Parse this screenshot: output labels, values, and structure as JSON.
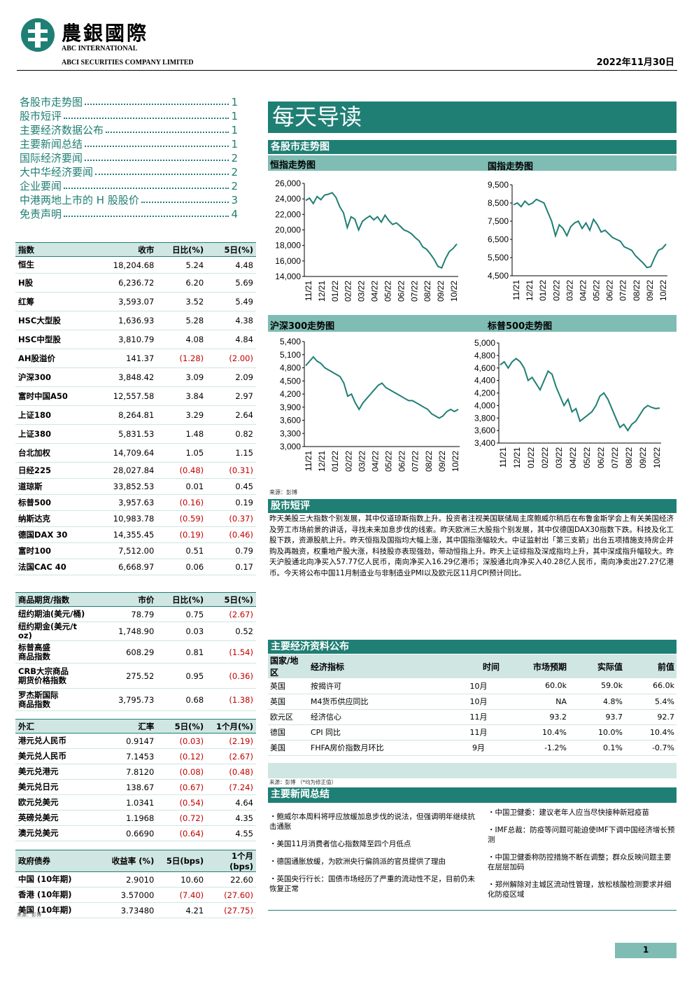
{
  "header": {
    "logo_cn": "農銀國際",
    "logo_en1": "ABC INTERNATIONAL",
    "logo_en2": "ABCI SECURITIES COMPANY LIMITED",
    "date": "2022年11月30日"
  },
  "toc": [
    {
      "label": "各股市走势图",
      "page": "1"
    },
    {
      "label": "股市短评",
      "page": "1"
    },
    {
      "label": "主要经济数据公布",
      "page": "1"
    },
    {
      "label": "主要新闻总结",
      "page": "1"
    },
    {
      "label": "国际经济要闻",
      "page": "2"
    },
    {
      "label": "大中华经济要闻",
      "page": "2"
    },
    {
      "label": "企业要闻",
      "page": "2"
    },
    {
      "label": "中港两地上市的 H 股股价",
      "page": "3"
    },
    {
      "label": "免责声明",
      "page": "4"
    }
  ],
  "index_table": {
    "headers": [
      "指数",
      "收市",
      "日比(%)",
      "5日(%)"
    ],
    "rows": [
      [
        "恒生",
        "18,204.68",
        "5.24",
        "4.48"
      ],
      [
        "H股",
        "6,236.72",
        "6.20",
        "5.69"
      ],
      [
        "红筹",
        "3,593.07",
        "3.52",
        "5.49"
      ],
      [
        "HSC大型股",
        "1,636.93",
        "5.28",
        "4.38"
      ],
      [
        "HSC中型股",
        "3,810.79",
        "4.08",
        "4.84"
      ],
      [
        "AH股溢价",
        "141.37",
        "(1.28)",
        "(2.00)"
      ],
      [
        "沪深300",
        "3,848.42",
        "3.09",
        "2.09"
      ],
      [
        "富时中国A50",
        "12,557.58",
        "3.84",
        "2.97"
      ],
      [
        "上证180",
        "8,264.81",
        "3.29",
        "2.64"
      ],
      [
        "上证380",
        "5,831.53",
        "1.48",
        "0.82"
      ],
      [
        "台北加权",
        "14,709.64",
        "1.05",
        "1.15"
      ],
      [
        "日经225",
        "28,027.84",
        "(0.48)",
        "(0.31)"
      ],
      [
        "道琼斯",
        "33,852.53",
        "0.01",
        "0.45"
      ],
      [
        "标普500",
        "3,957.63",
        "(0.16)",
        "0.19"
      ],
      [
        "纳斯达克",
        "10,983.78",
        "(0.59)",
        "(0.37)"
      ],
      [
        "德国DAX 30",
        "14,355.45",
        "(0.19)",
        "(0.46)"
      ],
      [
        "富时100",
        "7,512.00",
        "0.51",
        "0.79"
      ],
      [
        "法国CAC 40",
        "6,668.97",
        "0.06",
        "0.17"
      ]
    ]
  },
  "commodity_table": {
    "headers": [
      "商品期货/指数",
      "市价",
      "日比(%)",
      "5日(%)"
    ],
    "rows": [
      [
        "纽约期油(美元/桶)",
        "78.79",
        "0.75",
        "(2.67)"
      ],
      [
        "纽约期金(美元/t oz)",
        "1,748.90",
        "0.03",
        "0.52"
      ],
      [
        "标普高盛\n商品指数",
        "608.29",
        "0.81",
        "(1.54)"
      ],
      [
        "CRB大宗商品\n期货价格指数",
        "275.52",
        "0.95",
        "(0.36)"
      ],
      [
        "罗杰斯国际\n商品指数",
        "3,795.73",
        "0.68",
        "(1.38)"
      ]
    ]
  },
  "fx_table": {
    "headers": [
      "外汇",
      "汇率",
      "5日(%)",
      "1个月(%)"
    ],
    "rows": [
      [
        "港元兑人民币",
        "0.9147",
        "(0.03)",
        "(2.19)"
      ],
      [
        "美元兑人民币",
        "7.1453",
        "(0.12)",
        "(2.67)"
      ],
      [
        "美元兑港元",
        "7.8120",
        "(0.08)",
        "(0.48)"
      ],
      [
        "美元兑日元",
        "138.67",
        "(0.67)",
        "(7.24)"
      ],
      [
        "欧元兑美元",
        "1.0341",
        "(0.54)",
        "4.64"
      ],
      [
        "英磅兑美元",
        "1.1968",
        "(0.72)",
        "4.35"
      ],
      [
        "澳元兑美元",
        "0.6690",
        "(0.64)",
        "4.55"
      ]
    ]
  },
  "bond_table": {
    "headers": [
      "政府债券",
      "收益率 (%)",
      "5日(bps)",
      "1个月(bps)"
    ],
    "rows": [
      [
        "中国 (10年期)",
        "2.9010",
        "10.60",
        "22.60"
      ],
      [
        "香港 (10年期)",
        "3.57000",
        "(7.40)",
        "(27.60)"
      ],
      [
        "美国 (10年期)",
        "3.73480",
        "4.21",
        "(27.75)"
      ]
    ]
  },
  "left_source": "来源：彭博",
  "title": "每天导读",
  "charts_section": "各股市走势图",
  "chart_source": "来源：彭博",
  "charts": [
    {
      "title": "恒指走势图",
      "type": "line",
      "ylim": [
        14000,
        26000
      ],
      "yticks": [
        "26,000",
        "24,000",
        "22,000",
        "20,000",
        "18,000",
        "16,000",
        "14,000"
      ],
      "xticks": [
        "11/21",
        "12/21",
        "01/22",
        "02/22",
        "03/22",
        "04/22",
        "05/22",
        "06/22",
        "07/22",
        "08/22",
        "09/22",
        "10/22"
      ],
      "values": [
        23800,
        24100,
        23400,
        24300,
        23900,
        24500,
        24600,
        24800,
        24200,
        23000,
        22200,
        20300,
        21700,
        21400,
        20000,
        21100,
        21500,
        21800,
        21300,
        21700,
        21000,
        21900,
        21200,
        20700,
        20900,
        20500,
        20000,
        19800,
        19500,
        19000,
        18600,
        17800,
        17500,
        16900,
        16200,
        15300,
        15100,
        16300,
        17200,
        17600,
        18200
      ]
    },
    {
      "title": "国指走势图",
      "type": "line",
      "ylim": [
        4500,
        9500
      ],
      "yticks": [
        "9,500",
        "8,500",
        "7,500",
        "6,500",
        "5,500",
        "4,500"
      ],
      "xticks": [
        "11/21",
        "12/21",
        "01/22",
        "02/22",
        "03/22",
        "04/22",
        "05/22",
        "06/22",
        "07/22",
        "08/22",
        "09/22",
        "10/22"
      ],
      "values": [
        8400,
        8500,
        8300,
        8600,
        8400,
        8500,
        8700,
        8600,
        8500,
        8000,
        7500,
        6700,
        7300,
        7100,
        6700,
        7200,
        7400,
        7500,
        7100,
        7400,
        7000,
        7600,
        7300,
        6900,
        7000,
        6800,
        6600,
        6500,
        6400,
        6100,
        6000,
        5900,
        5600,
        5400,
        5200,
        4950,
        5000,
        5500,
        5900,
        6000,
        6240
      ]
    },
    {
      "title": "沪深300走势图",
      "type": "line",
      "ylim": [
        3000,
        5400
      ],
      "yticks": [
        "5,400",
        "5,100",
        "4,800",
        "4,500",
        "4,200",
        "3,900",
        "3,600",
        "3,300",
        "3,000"
      ],
      "xticks": [
        "11/21",
        "12/21",
        "01/22",
        "02/22",
        "03/22",
        "04/22",
        "05/22",
        "06/22",
        "07/22",
        "08/22",
        "09/22",
        "10/22"
      ],
      "values": [
        4850,
        4950,
        5050,
        4950,
        4900,
        4800,
        4750,
        4700,
        4650,
        4600,
        4450,
        4150,
        4200,
        4000,
        3850,
        4000,
        4100,
        4200,
        4300,
        4400,
        4450,
        4350,
        4300,
        4250,
        4200,
        4150,
        4100,
        4050,
        4050,
        4000,
        3950,
        3900,
        3850,
        3750,
        3700,
        3650,
        3700,
        3800,
        3850,
        3800,
        3850
      ]
    },
    {
      "title": "标普500走势图",
      "type": "line",
      "ylim": [
        3400,
        5000
      ],
      "yticks": [
        "5,000",
        "4,800",
        "4,600",
        "4,400",
        "4,200",
        "4,000",
        "3,800",
        "3,600",
        "3,400"
      ],
      "xticks": [
        "11/21",
        "12/21",
        "01/22",
        "02/22",
        "03/22",
        "04/22",
        "05/22",
        "06/22",
        "07/22",
        "08/22",
        "09/22",
        "10/22"
      ],
      "values": [
        4650,
        4700,
        4600,
        4700,
        4750,
        4700,
        4600,
        4400,
        4450,
        4350,
        4250,
        4400,
        4550,
        4500,
        4300,
        4150,
        4000,
        4100,
        3900,
        3950,
        3750,
        3800,
        3850,
        3900,
        4000,
        4150,
        4200,
        4100,
        3950,
        3800,
        3650,
        3700,
        3600,
        3700,
        3750,
        3850,
        3950,
        4000,
        3970,
        3950,
        3960
      ]
    }
  ],
  "commentary": {
    "title": "股市短评",
    "text": "昨天美股三大指数个别发展，其中仅道琼斯指数上升。投资者注视美国联储局主席鲍威尔稍后在布鲁金斯学会上有关美国经济及劳工市场前景的讲话，寻找未来加息步伐的线索。昨天欧洲三大股指个别发展，其中仅德国DAX30指数下跌。科技及化工股下跌，资源股航上升。昨天恒指及国指均大幅上涨，其中国指涨幅较大。中证监射出「第三支箭」出台五项措施支持房企并购及再融资，权重地产股大涨，科技股亦表现强劲，带动恒指上升。昨天上证综指及深成指均上升，其中深成指升幅较大。昨天沪股通北向净买入57.77亿人民币，南向净买入16.29亿港币；深股通北向净买入40.28亿人民币，南向净卖出27.27亿港币。今天将公布中国11月制造业与非制造业PMI以及欧元区11月CPI预计同比。"
  },
  "econ": {
    "title": "主要经济资料公布",
    "headers": [
      "国家/地区",
      "经济指标",
      "时间",
      "市场预期",
      "实际值",
      "前值"
    ],
    "rows": [
      [
        "英国",
        "按揭许可",
        "10月",
        "60.0k",
        "59.0k",
        "66.0k"
      ],
      [
        "英国",
        "M4货币供应同比",
        "10月",
        "NA",
        "4.8%",
        "5.4%"
      ],
      [
        "欧元区",
        "经济信心",
        "11月",
        "93.2",
        "93.7",
        "92.7"
      ],
      [
        "德国",
        "CPI 同比",
        "11月",
        "10.4%",
        "10.0%",
        "10.4%"
      ],
      [
        "美国",
        "FHFA房价指数月环比",
        "9月",
        "-1.2%",
        "0.1%",
        "-0.7%"
      ]
    ],
    "source": "来源：彭博 （*均为修正值）"
  },
  "news": {
    "title": "主要新闻总结",
    "left": [
      "・鲍威尔本周料将呼应放缓加息步伐的说法，但强调明年继续抗击通胀",
      "・美国11月消费者信心指数降至四个月低点",
      "・德国通胀放缓，为欧洲央行偏鸽派的官员提供了理由",
      "・英国央行行长：国债市场经历了严重的流动性不足，目前仍未恢复正常"
    ],
    "right": [
      "・中国卫健委：建议老年人应当尽快接种新冠疫苗",
      "・IMF总裁：防疫等问题可能迫使IMF下调中国经济增长预测",
      "・中国卫健委称防控措施不断在调整；群众反映问题主要在层层加码",
      "・郑州解除对主城区流动性管理，放松核酸检测要求并细化防疫区域"
    ]
  },
  "page_number": "1",
  "colors": {
    "teal": "#1f7f74",
    "light_teal": "#cfe6e2",
    "negative": "#c00000"
  }
}
